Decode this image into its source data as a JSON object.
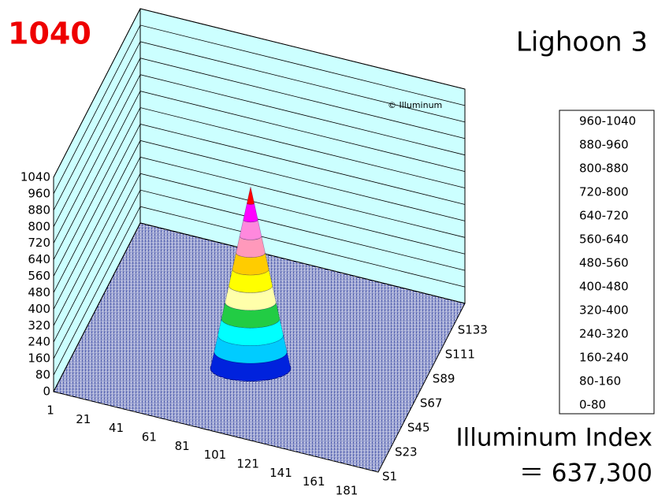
{
  "chart_data": {
    "type": "surface3d",
    "title": "Lighoon 3",
    "peak_label": 1040,
    "watermark": "© Illuminum",
    "index_label": "Illuminum Index",
    "index_text": "＝ 637,300",
    "ylim": [
      0,
      1040
    ],
    "yticks": [
      0,
      80,
      160,
      240,
      320,
      400,
      480,
      560,
      640,
      720,
      800,
      880,
      960,
      1040
    ],
    "xticks": [
      1,
      21,
      41,
      61,
      81,
      101,
      121,
      141,
      161,
      181
    ],
    "series_ticks": [
      "S1",
      "S23",
      "S45",
      "S67",
      "S89",
      "S111",
      "S133"
    ],
    "legend": [
      {
        "label": "960-1040",
        "min": 960,
        "max": 1040,
        "color": "#ff0000"
      },
      {
        "label": "880-960",
        "min": 880,
        "max": 960,
        "color": "#ff00ff"
      },
      {
        "label": "800-880",
        "min": 800,
        "max": 880,
        "color": "#ff88dd"
      },
      {
        "label": "720-800",
        "min": 720,
        "max": 800,
        "color": "#ff99bb"
      },
      {
        "label": "640-720",
        "min": 640,
        "max": 720,
        "color": "#ffcc00"
      },
      {
        "label": "560-640",
        "min": 560,
        "max": 640,
        "color": "#ffff00"
      },
      {
        "label": "480-560",
        "min": 480,
        "max": 560,
        "color": "#ffffaa"
      },
      {
        "label": "400-480",
        "min": 400,
        "max": 480,
        "color": "#22cc44"
      },
      {
        "label": "320-400",
        "min": 320,
        "max": 400,
        "color": "#00ffff"
      },
      {
        "label": "240-320",
        "min": 240,
        "max": 320,
        "color": "#00ccff"
      },
      {
        "label": "160-240",
        "min": 160,
        "max": 240,
        "color": "#0022dd"
      },
      {
        "label": "80-160",
        "min": 80,
        "max": 160,
        "color": "#3366ff"
      },
      {
        "label": "0-80",
        "min": 0,
        "max": 80,
        "color": "#0000ff"
      }
    ]
  }
}
